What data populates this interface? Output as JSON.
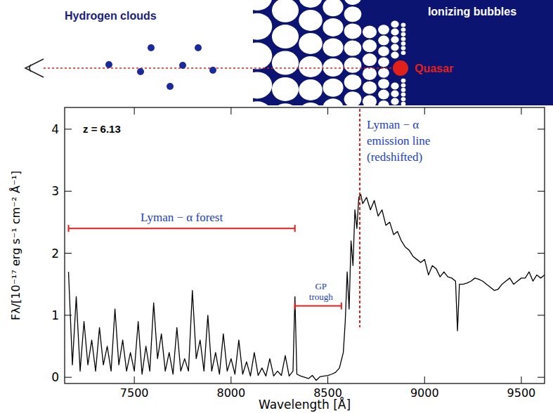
{
  "diagram": {
    "left_label": "Hydrogen clouds",
    "right_label": "Ionizing bubbles",
    "source_label": "Quasar"
  },
  "chart_data": {
    "type": "line",
    "x": [
      7160,
      7180,
      7200,
      7220,
      7240,
      7260,
      7280,
      7300,
      7320,
      7340,
      7360,
      7380,
      7400,
      7420,
      7440,
      7460,
      7480,
      7500,
      7520,
      7540,
      7560,
      7580,
      7600,
      7620,
      7640,
      7660,
      7680,
      7700,
      7720,
      7740,
      7760,
      7780,
      7800,
      7820,
      7840,
      7860,
      7880,
      7900,
      7920,
      7940,
      7960,
      7980,
      8000,
      8020,
      8040,
      8060,
      8080,
      8100,
      8120,
      8140,
      8160,
      8180,
      8200,
      8220,
      8240,
      8260,
      8280,
      8300,
      8320,
      8330,
      8340,
      8360,
      8380,
      8400,
      8420,
      8440,
      8460,
      8480,
      8500,
      8520,
      8540,
      8560,
      8580,
      8590,
      8600,
      8610,
      8620,
      8630,
      8640,
      8650,
      8660,
      8670,
      8680,
      8700,
      8720,
      8740,
      8760,
      8780,
      8800,
      8820,
      8840,
      8860,
      8880,
      8900,
      8920,
      8940,
      8960,
      8980,
      9000,
      9020,
      9040,
      9060,
      9080,
      9100,
      9120,
      9140,
      9160,
      9170,
      9180,
      9200,
      9220,
      9240,
      9260,
      9280,
      9300,
      9320,
      9340,
      9360,
      9380,
      9400,
      9420,
      9440,
      9460,
      9480,
      9500,
      9520,
      9540,
      9560,
      9580,
      9600,
      9620
    ],
    "values": [
      1.7,
      0.2,
      1.3,
      0.1,
      0.9,
      0.2,
      0.6,
      0.1,
      0.8,
      0.2,
      0.5,
      0.1,
      1.1,
      0.2,
      0.6,
      0.1,
      0.4,
      0.1,
      0.9,
      0.05,
      0.5,
      0.1,
      1.2,
      0.3,
      0.7,
      0.1,
      0.4,
      0.05,
      0.8,
      0.1,
      0.3,
      0.1,
      1.4,
      0.3,
      0.6,
      0.1,
      1.0,
      0.1,
      0.4,
      0.05,
      0.7,
      0.1,
      0.3,
      0.05,
      0.6,
      0.05,
      0.25,
      0.02,
      0.4,
      0.03,
      0.15,
      0.02,
      0.3,
      0.02,
      0.1,
      0.03,
      0.35,
      0.02,
      0.1,
      1.3,
      0.05,
      0.02,
      0.0,
      -0.02,
      0.03,
      -0.05,
      0.01,
      0.02,
      0.03,
      0.05,
      0.08,
      0.15,
      0.4,
      0.9,
      1.7,
      1.1,
      2.2,
      1.8,
      2.7,
      2.4,
      2.9,
      2.95,
      2.8,
      2.9,
      2.7,
      2.85,
      2.6,
      2.7,
      2.45,
      2.5,
      2.3,
      2.35,
      2.2,
      2.1,
      2.05,
      1.95,
      1.9,
      1.85,
      1.9,
      1.65,
      1.8,
      1.75,
      1.62,
      1.7,
      1.62,
      1.6,
      1.55,
      0.75,
      1.5,
      1.5,
      1.52,
      1.55,
      1.6,
      1.58,
      1.55,
      1.5,
      1.45,
      1.4,
      1.42,
      1.5,
      1.55,
      1.6,
      1.5,
      1.55,
      1.6,
      1.6,
      1.7,
      1.55,
      1.65,
      1.6,
      1.65
    ],
    "color": "#000000",
    "xlim": [
      7140,
      9620
    ],
    "xticks": [
      7500,
      8000,
      8500,
      9000,
      9500
    ],
    "ylim": [
      -0.1,
      4.35
    ],
    "yticks": [
      0,
      1,
      2,
      3,
      4
    ],
    "x_label": "Wavelength [Å]",
    "y_label": "Fλ/[10⁻¹⁷ erg s⁻¹ cm⁻² Å⁻¹]",
    "annotations": {
      "redshift": "z = 6.13",
      "forest": {
        "label": "Lyman − α forest",
        "x": [
          7160,
          8330
        ],
        "y": 2.4
      },
      "trough": {
        "label": [
          "GP",
          "trough"
        ],
        "x": [
          8330,
          8570
        ],
        "y": 1.15
      },
      "emission_line": {
        "label": [
          "Lyman − α",
          "emission line",
          "(redshifted)"
        ],
        "x": 8665
      }
    }
  }
}
